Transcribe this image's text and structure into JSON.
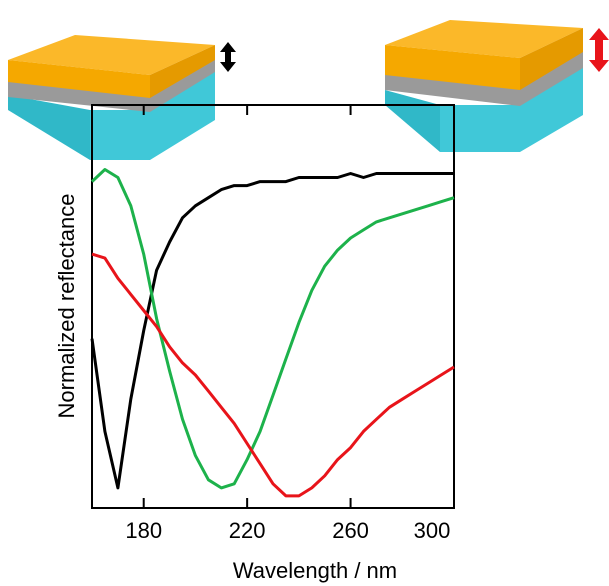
{
  "chart_data": {
    "type": "line",
    "x_label": "Wavelength / nm",
    "y_label": "Normalized reflectance",
    "x": [
      160,
      165,
      170,
      175,
      180,
      185,
      190,
      195,
      200,
      205,
      210,
      215,
      220,
      225,
      230,
      235,
      240,
      245,
      250,
      255,
      260,
      265,
      270,
      275,
      280,
      285,
      290,
      295,
      300
    ],
    "series": [
      {
        "color": "#000000",
        "values": [
          0.42,
          0.19,
          0.05,
          0.27,
          0.44,
          0.59,
          0.66,
          0.72,
          0.75,
          0.77,
          0.79,
          0.8,
          0.8,
          0.81,
          0.81,
          0.81,
          0.82,
          0.82,
          0.82,
          0.82,
          0.83,
          0.82,
          0.83,
          0.83,
          0.83,
          0.83,
          0.83,
          0.83,
          0.83
        ]
      },
      {
        "color": "#1db24b",
        "values": [
          0.81,
          0.84,
          0.82,
          0.75,
          0.63,
          0.47,
          0.34,
          0.22,
          0.13,
          0.07,
          0.05,
          0.06,
          0.12,
          0.19,
          0.28,
          0.37,
          0.46,
          0.54,
          0.6,
          0.64,
          0.67,
          0.69,
          0.71,
          0.72,
          0.73,
          0.74,
          0.75,
          0.76,
          0.77
        ]
      },
      {
        "color": "#e8141a",
        "values": [
          0.63,
          0.62,
          0.57,
          0.53,
          0.49,
          0.45,
          0.4,
          0.36,
          0.33,
          0.29,
          0.25,
          0.21,
          0.16,
          0.11,
          0.06,
          0.03,
          0.03,
          0.05,
          0.08,
          0.12,
          0.15,
          0.19,
          0.22,
          0.25,
          0.27,
          0.29,
          0.31,
          0.33,
          0.35
        ]
      }
    ],
    "xlim": [
      160,
      300
    ],
    "xticks": [
      180,
      220,
      260,
      300
    ],
    "ylim": [
      0,
      1
    ]
  }
}
